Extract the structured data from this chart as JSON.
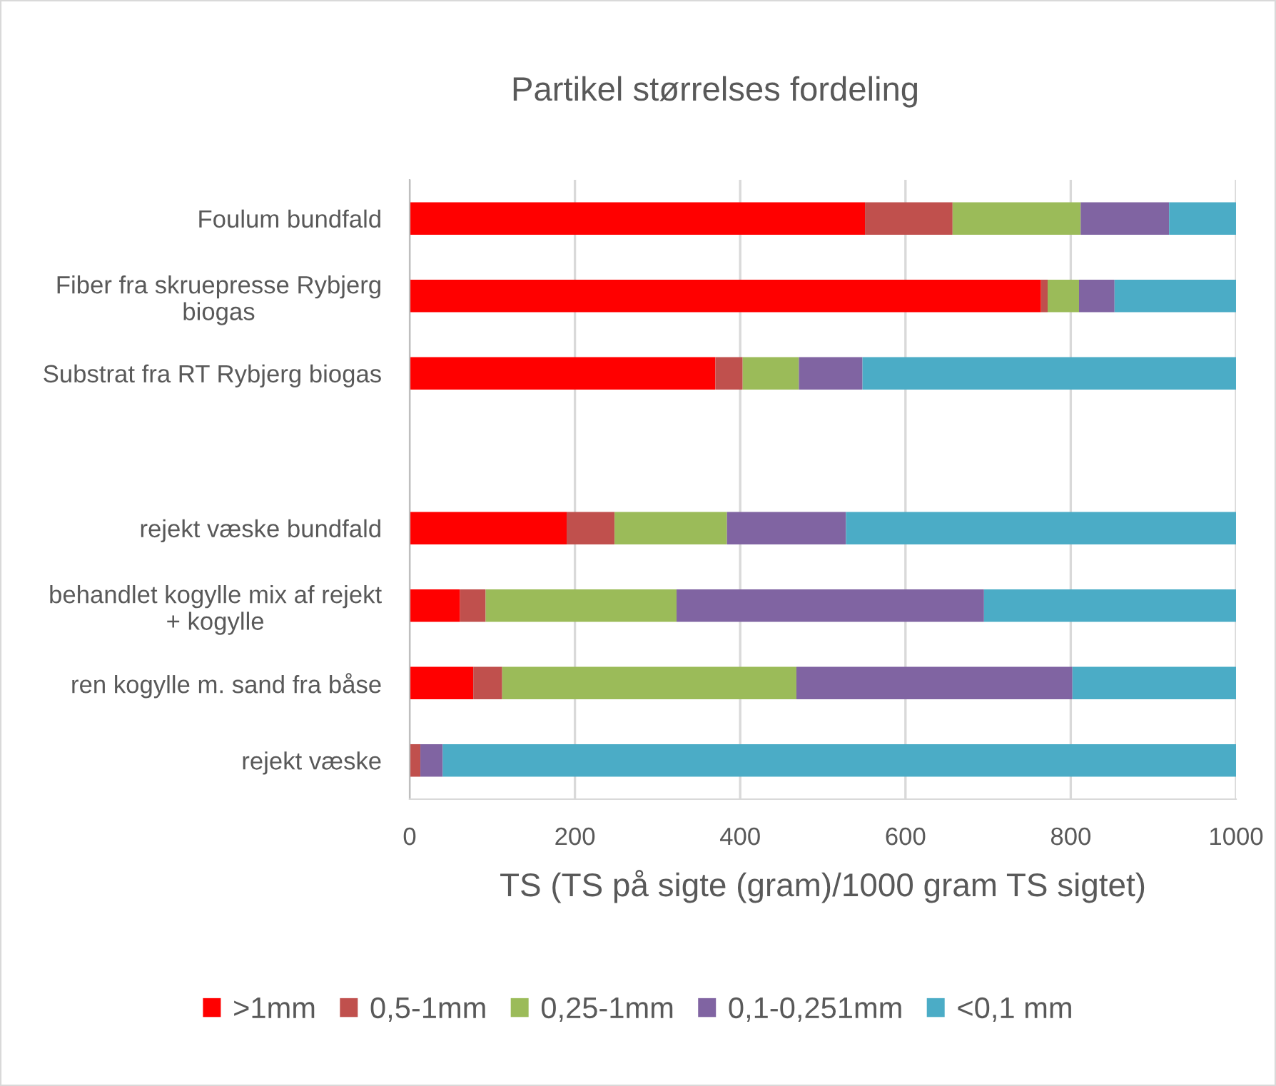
{
  "chart_data": {
    "type": "bar",
    "orientation": "horizontal",
    "stacked": true,
    "title": "Partikel størrelses fordeling",
    "xlabel": "TS (TS på sigte (gram)/1000 gram TS sigtet)",
    "categories": [
      "Foulum bundfald",
      "Fiber fra skruepresse Rybjerg biogas",
      "Substrat fra RT Rybjerg biogas",
      null,
      "rejekt væske bundfald",
      "behandlet kogylle mix af rejekt + kogylle",
      "ren kogylle m. sand fra båse",
      "rejekt væske"
    ],
    "series": [
      {
        "name": ">1mm",
        "color": "#ff0000",
        "values": [
          551,
          764,
          370,
          null,
          190,
          61,
          77,
          0
        ]
      },
      {
        "name": "0,5-1mm",
        "color": "#c0504d",
        "values": [
          106,
          8,
          33,
          null,
          58,
          31,
          35,
          13
        ]
      },
      {
        "name": "0,25-1mm",
        "color": "#9bbb59",
        "values": [
          155,
          38,
          68,
          null,
          136,
          231,
          356,
          0
        ]
      },
      {
        "name": "0,1-0,251mm",
        "color": "#8064a2",
        "values": [
          107,
          43,
          77,
          null,
          144,
          372,
          334,
          27
        ]
      },
      {
        "name": "<0,1 mm",
        "color": "#4bacc6",
        "values": [
          81,
          147,
          452,
          null,
          472,
          305,
          198,
          960
        ]
      }
    ],
    "xlim": [
      0,
      1000
    ],
    "xticks": [
      0,
      200,
      400,
      600,
      800,
      1000
    ],
    "grid": "x",
    "legend": "bottom"
  }
}
